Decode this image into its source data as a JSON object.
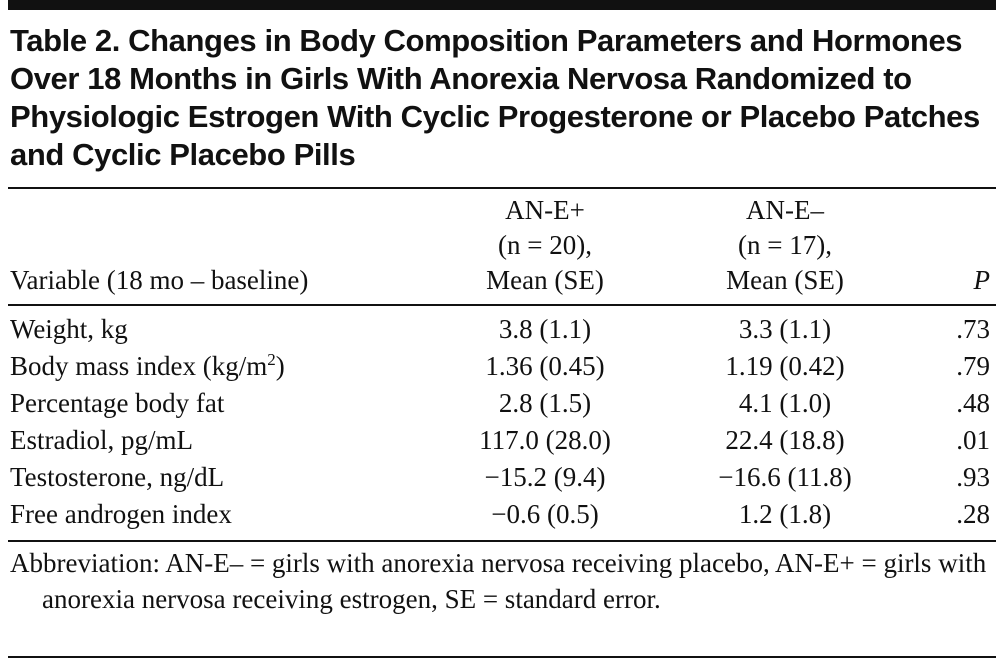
{
  "title": "Table 2. Changes in Body Composition Parameters and Hormones Over 18 Months in Girls With Anorexia Nervosa Randomized to Physiologic Estrogen With Cyclic Progesterone or Placebo Patches and Cyclic Placebo Pills",
  "table": {
    "header": [
      [
        "Variable (18 mo – baseline)"
      ],
      [
        "AN-E+",
        "(n = 20),",
        "Mean (SE)"
      ],
      [
        "AN-E–",
        "(n = 17),",
        "Mean (SE)"
      ],
      [
        "P"
      ]
    ],
    "rows": [
      [
        "Weight, kg",
        "3.8 (1.1)",
        "3.3 (1.1)",
        ".73"
      ],
      [
        [
          "Body mass index (kg/m",
          "2",
          ")"
        ],
        "1.36 (0.45)",
        "1.19 (0.42)",
        ".79"
      ],
      [
        "Percentage body fat",
        "2.8 (1.5)",
        "4.1 (1.0)",
        ".48"
      ],
      [
        "Estradiol, pg/mL",
        "117.0 (28.0)",
        "22.4 (18.8)",
        ".01"
      ],
      [
        "Testosterone, ng/dL",
        "−15.2 (9.4)",
        "−16.6 (11.8)",
        ".93"
      ],
      [
        "Free androgen index",
        "−0.6 (0.5)",
        "1.2 (1.8)",
        ".28"
      ]
    ]
  },
  "footnote": "Abbreviation: AN-E– = girls with anorexia nervosa receiving placebo, AN-E+ = girls with anorexia nervosa receiving estrogen, SE = standard error."
}
